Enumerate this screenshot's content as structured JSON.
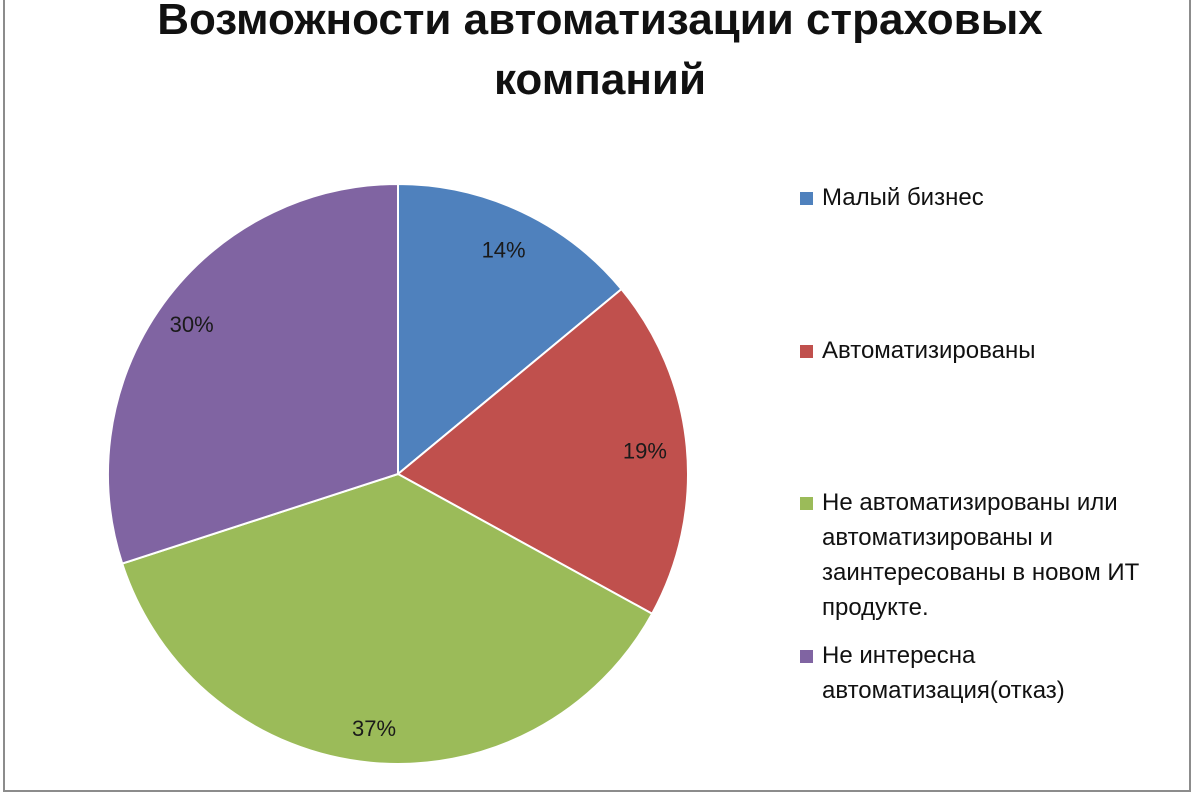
{
  "chart_data": {
    "type": "pie",
    "title": "Возможности автоматизации страховых компаний",
    "categories": [
      "Малый бизнес",
      "Автоматизированы",
      "Не автоматизированы  или\nавтоматизированы и\nзаинтересованы в новом ИТ\nпродукте.",
      "Не интересна\nавтоматизация(отказ)"
    ],
    "values": [
      14,
      19,
      37,
      30
    ],
    "value_labels": [
      "14%",
      "19%",
      "37%",
      "30%"
    ],
    "colors": [
      "#4f81bd",
      "#c0504d",
      "#9bbb59",
      "#8064a2"
    ],
    "legend_position": "right"
  }
}
